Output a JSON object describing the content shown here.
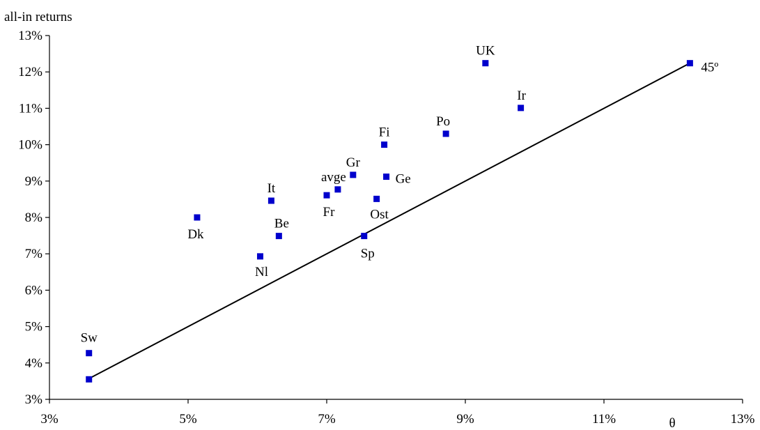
{
  "chart_data": {
    "type": "scatter",
    "ylabel": "all-in returns",
    "xlabel": "θ",
    "xlim": [
      3,
      13
    ],
    "ylim": [
      3,
      13
    ],
    "xticks": [
      "3%",
      "5%",
      "7%",
      "9%",
      "11%",
      "13%"
    ],
    "yticks": [
      "3%",
      "4%",
      "5%",
      "6%",
      "7%",
      "8%",
      "9%",
      "10%",
      "11%",
      "12%",
      "13%"
    ],
    "grid": false,
    "marker_color": "#0000CC",
    "line_color": "#000000",
    "line": {
      "label": "45º",
      "x": [
        3.56,
        12.24
      ],
      "y": [
        3.56,
        12.24
      ]
    },
    "points": [
      {
        "label": "Sw",
        "x": 3.57,
        "y": 4.27
      },
      {
        "label": "",
        "x": 3.57,
        "y": 3.55
      },
      {
        "label": "Dk",
        "x": 5.13,
        "y": 8.0
      },
      {
        "label": "Nl",
        "x": 6.04,
        "y": 6.93
      },
      {
        "label": "It",
        "x": 6.2,
        "y": 8.46
      },
      {
        "label": "Be",
        "x": 6.31,
        "y": 7.49
      },
      {
        "label": "Fr",
        "x": 7.0,
        "y": 8.61
      },
      {
        "label": "avge",
        "x": 7.16,
        "y": 8.77
      },
      {
        "label": "Gr",
        "x": 7.38,
        "y": 9.17
      },
      {
        "label": "Sp",
        "x": 7.54,
        "y": 7.49
      },
      {
        "label": "Ost",
        "x": 7.72,
        "y": 8.51
      },
      {
        "label": "Fi",
        "x": 7.83,
        "y": 10.0
      },
      {
        "label": "Ge",
        "x": 7.86,
        "y": 9.12
      },
      {
        "label": "Po",
        "x": 8.72,
        "y": 10.3
      },
      {
        "label": "UK",
        "x": 9.29,
        "y": 12.24
      },
      {
        "label": "Ir",
        "x": 9.8,
        "y": 11.01
      },
      {
        "label": "",
        "x": 12.24,
        "y": 12.24
      }
    ]
  }
}
